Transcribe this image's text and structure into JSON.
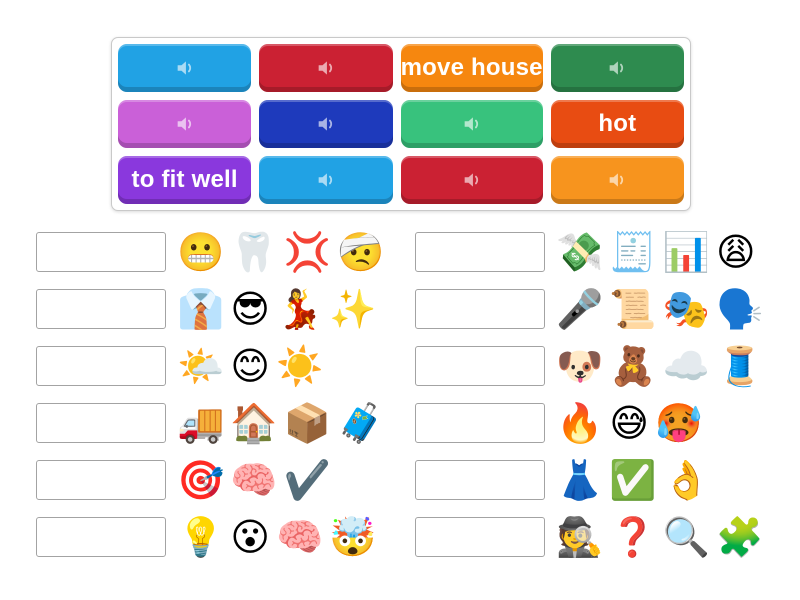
{
  "board": {
    "cards": [
      {
        "kind": "audio",
        "color": "#21a2e4",
        "icon": "speaker-icon"
      },
      {
        "kind": "audio",
        "color": "#cb2133",
        "icon": "speaker-icon"
      },
      {
        "kind": "text",
        "color": "#f6870f",
        "label": "move house"
      },
      {
        "kind": "audio",
        "color": "#2e8b4f",
        "icon": "speaker-icon"
      },
      {
        "kind": "audio",
        "color": "#ca60d8",
        "icon": "speaker-icon"
      },
      {
        "kind": "audio",
        "color": "#1e3abc",
        "icon": "speaker-icon"
      },
      {
        "kind": "audio",
        "color": "#38c27d",
        "icon": "speaker-icon"
      },
      {
        "kind": "text",
        "color": "#e84c12",
        "label": "hot"
      },
      {
        "kind": "text",
        "color": "#8a38dd",
        "label": "to fit well"
      },
      {
        "kind": "audio",
        "color": "#21a2e4",
        "icon": "speaker-icon"
      },
      {
        "kind": "audio",
        "color": "#cb2133",
        "icon": "speaker-icon"
      },
      {
        "kind": "audio",
        "color": "#f7941e",
        "icon": "speaker-icon"
      }
    ]
  },
  "answers": {
    "left": [
      {
        "emojis": [
          "😬",
          "🦷",
          "💢",
          "🤕"
        ]
      },
      {
        "emojis": [
          "👔",
          "😎",
          "💃",
          "✨"
        ]
      },
      {
        "emojis": [
          "🌤️",
          "😊",
          "☀️"
        ]
      },
      {
        "emojis": [
          "🚚",
          "🏠",
          "📦",
          "🧳"
        ]
      },
      {
        "emojis": [
          "🎯",
          "🧠",
          "✔️"
        ]
      },
      {
        "emojis": [
          "💡",
          "😮",
          "🧠",
          "🤯"
        ]
      }
    ],
    "right": [
      {
        "emojis": [
          "💸",
          "🧾",
          "📊",
          "😩"
        ]
      },
      {
        "emojis": [
          "🎤",
          "📜",
          "🎭",
          "🗣️"
        ]
      },
      {
        "emojis": [
          "🐶",
          "🧸",
          "☁️",
          "🧵"
        ]
      },
      {
        "emojis": [
          "🔥",
          "😅",
          "🥵"
        ]
      },
      {
        "emojis": [
          "👗",
          "✅",
          "👌"
        ]
      },
      {
        "emojis": [
          "🕵️",
          "❓",
          "🔍",
          "🧩"
        ]
      }
    ]
  }
}
